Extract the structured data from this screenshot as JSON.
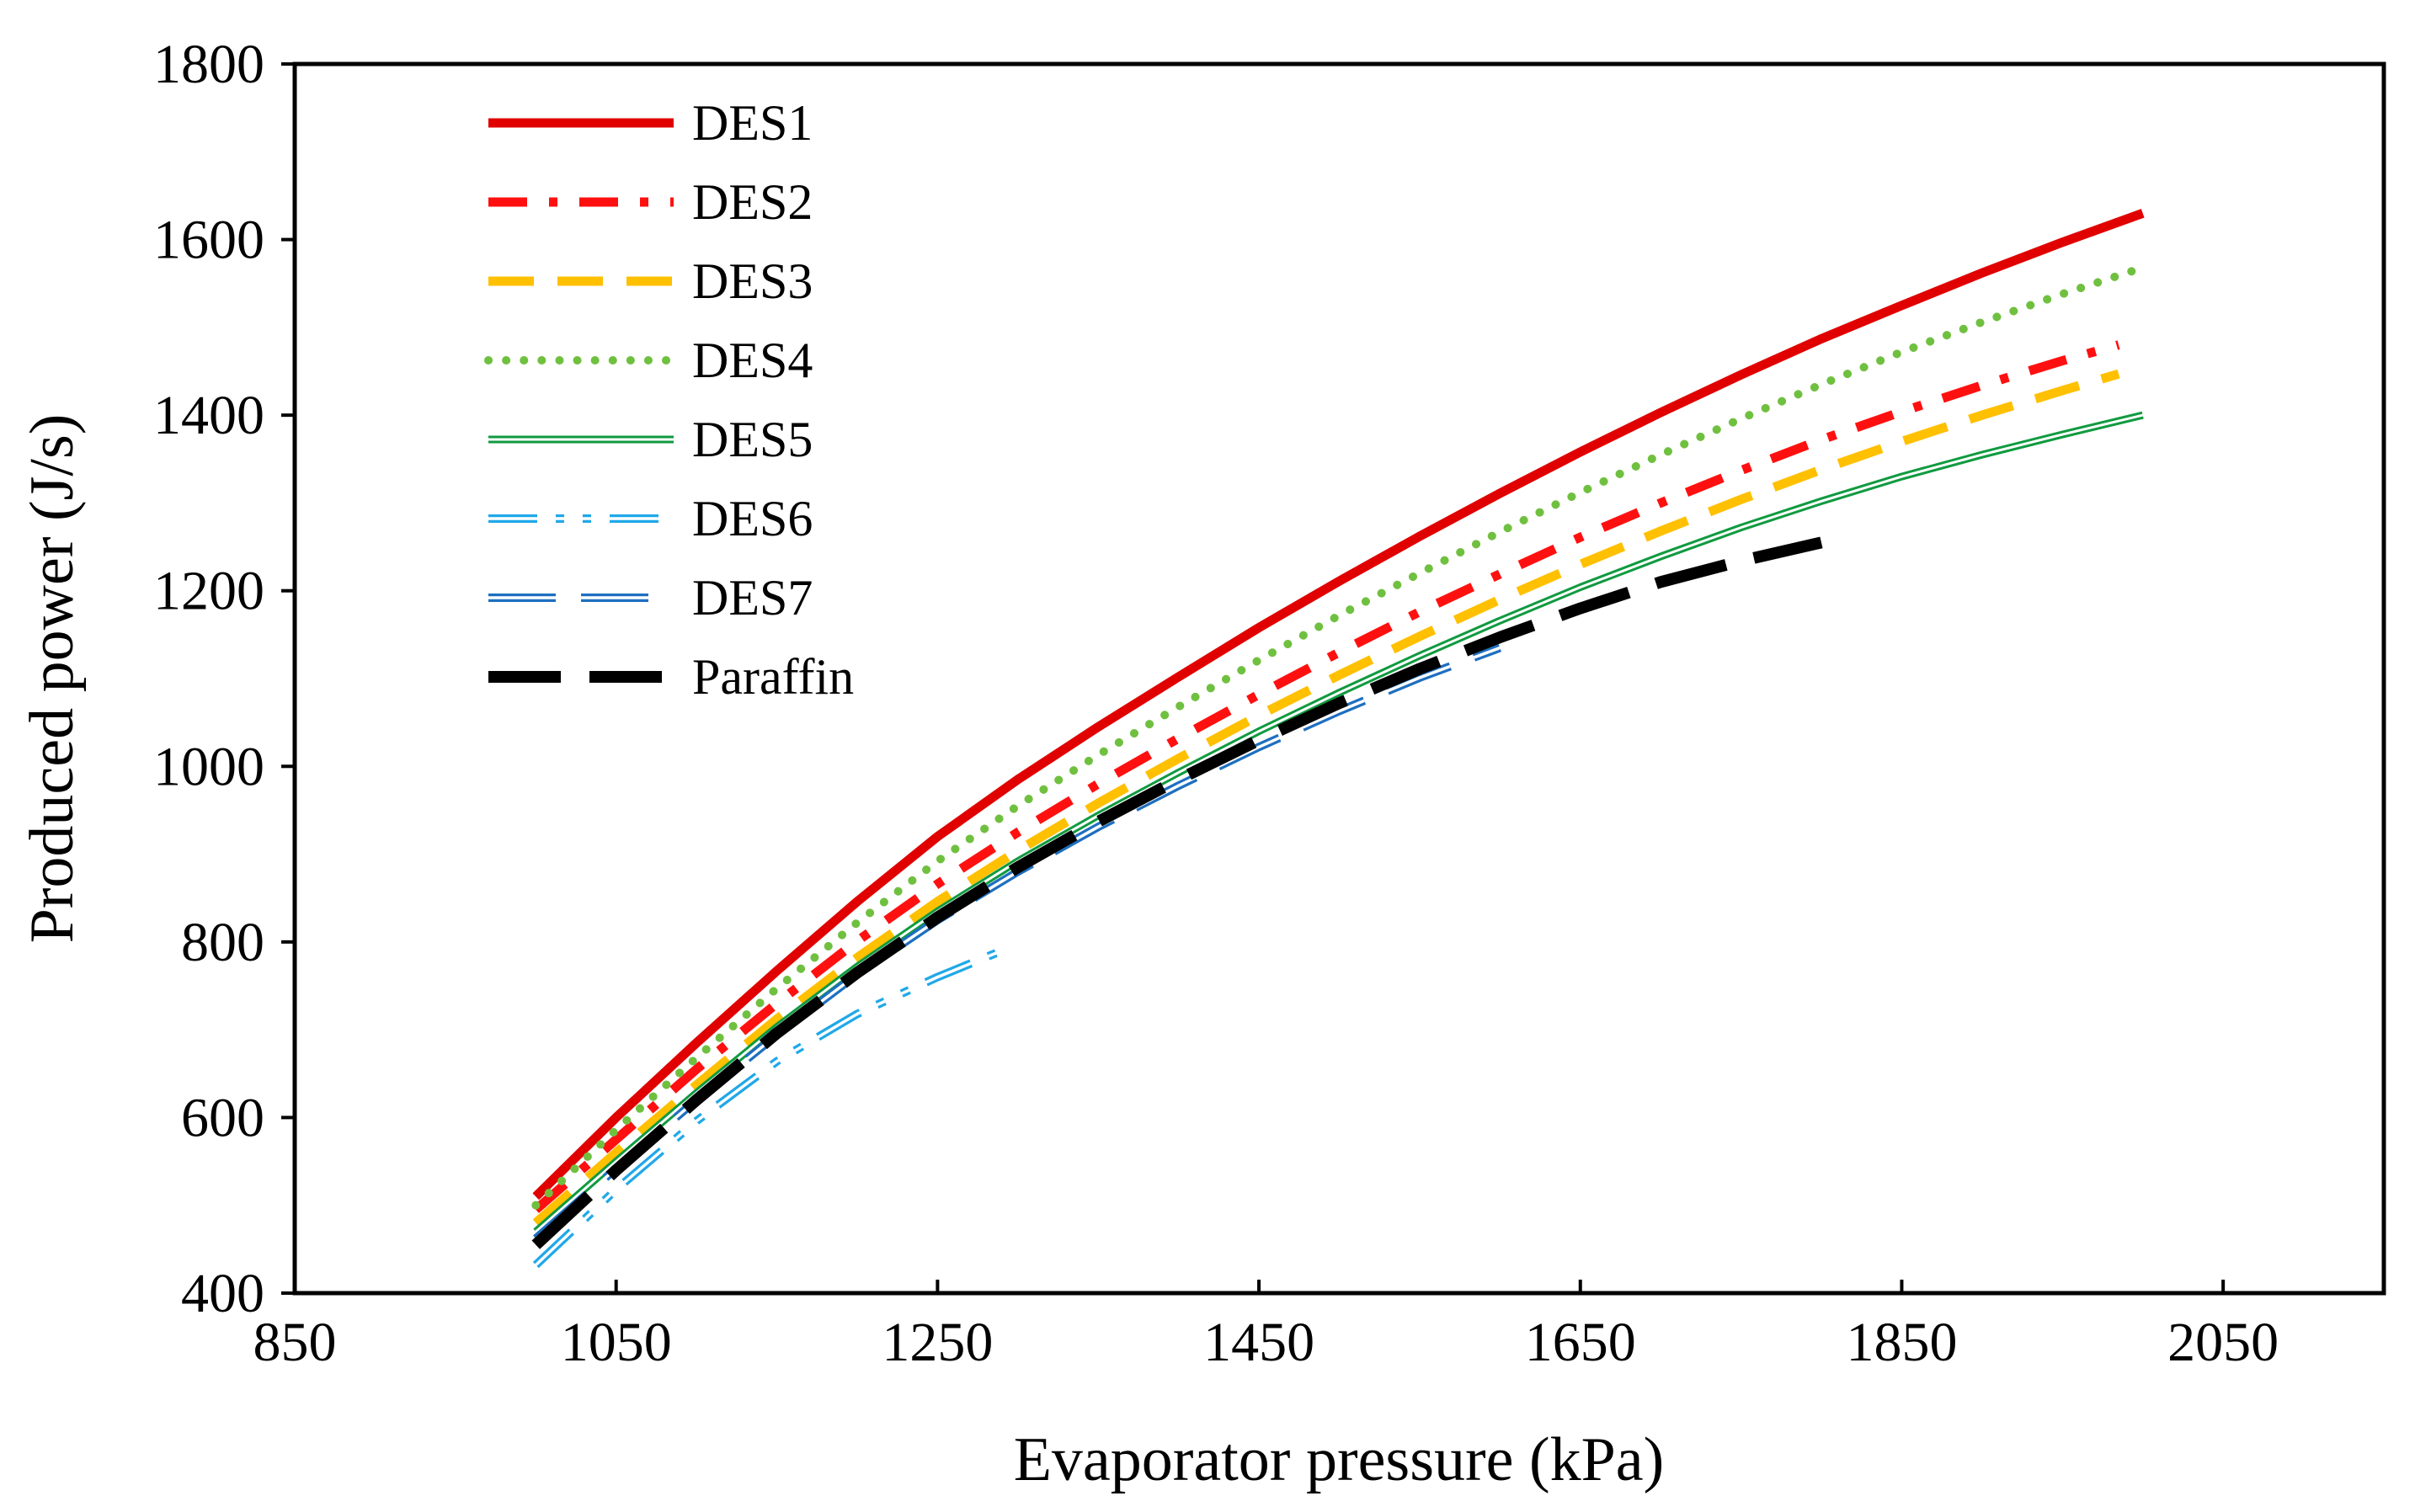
{
  "chart_data": {
    "type": "line",
    "title": "",
    "xlabel": "Evaporator pressure (kPa)",
    "ylabel": "Produced power (J/s)",
    "xlim": [
      850,
      2150
    ],
    "ylim": [
      400,
      1800
    ],
    "xticks": [
      850,
      1050,
      1250,
      1450,
      1650,
      1850,
      2050
    ],
    "yticks": [
      400,
      600,
      800,
      1000,
      1200,
      1400,
      1600,
      1800
    ],
    "xtick_labels": [
      "850",
      "1050",
      "1250",
      "1450",
      "1650",
      "1850",
      "2050"
    ],
    "ytick_labels": [
      "400",
      "600",
      "800",
      "1000",
      "1200",
      "1400",
      "1600",
      "1800"
    ],
    "legend_position": "top-left",
    "series": [
      {
        "name": "DES1",
        "color": "#e00000",
        "style": "solid",
        "x": [
          1000,
          1050,
          1100,
          1150,
          1200,
          1250,
          1300,
          1350,
          1400,
          1450,
          1500,
          1550,
          1600,
          1650,
          1700,
          1750,
          1800,
          1850,
          1900,
          1950,
          2000
        ],
        "y": [
          510,
          600,
          685,
          767,
          846,
          920,
          985,
          1045,
          1102,
          1158,
          1211,
          1262,
          1311,
          1358,
          1403,
          1446,
          1487,
          1525,
          1562,
          1597,
          1630
        ]
      },
      {
        "name": "DES2",
        "color": "#ff1010",
        "style": "dashdot",
        "x": [
          1000,
          1050,
          1100,
          1150,
          1200,
          1250,
          1300,
          1350,
          1400,
          1450,
          1500,
          1550,
          1600,
          1650,
          1700,
          1750,
          1800,
          1850,
          1900,
          1950,
          1985
        ],
        "y": [
          495,
          575,
          655,
          730,
          801,
          866,
          925,
          980,
          1032,
          1082,
          1130,
          1176,
          1219,
          1261,
          1300,
          1337,
          1372,
          1404,
          1434,
          1462,
          1480
        ]
      },
      {
        "name": "DES3",
        "color": "#ffc000",
        "style": "dash",
        "x": [
          1000,
          1050,
          1100,
          1150,
          1200,
          1250,
          1300,
          1350,
          1400,
          1450,
          1500,
          1550,
          1600,
          1650,
          1700,
          1750,
          1800,
          1850,
          1900,
          1950,
          1985
        ],
        "y": [
          480,
          560,
          637,
          712,
          782,
          846,
          904,
          958,
          1009,
          1058,
          1104,
          1148,
          1190,
          1230,
          1268,
          1304,
          1338,
          1370,
          1400,
          1428,
          1447
        ]
      },
      {
        "name": "DES4",
        "color": "#70c040",
        "style": "dot",
        "x": [
          1000,
          1050,
          1100,
          1150,
          1200,
          1250,
          1300,
          1350,
          1400,
          1450,
          1500,
          1550,
          1600,
          1650,
          1700,
          1750,
          1800,
          1850,
          1900,
          1950,
          2000
        ],
        "y": [
          500,
          586,
          668,
          747,
          822,
          892,
          955,
          1013,
          1068,
          1121,
          1172,
          1220,
          1267,
          1312,
          1355,
          1396,
          1435,
          1472,
          1506,
          1538,
          1568
        ]
      },
      {
        "name": "DES5",
        "color": "#109a40",
        "style": "double",
        "x": [
          1000,
          1050,
          1100,
          1150,
          1200,
          1250,
          1300,
          1350,
          1400,
          1450,
          1500,
          1550,
          1600,
          1650,
          1700,
          1750,
          1800,
          1850,
          1900,
          1950,
          2000
        ],
        "y": [
          470,
          550,
          628,
          703,
          772,
          835,
          892,
          944,
          993,
          1040,
          1084,
          1126,
          1166,
          1204,
          1239,
          1272,
          1302,
          1330,
          1355,
          1378,
          1400
        ]
      },
      {
        "name": "DES6",
        "color": "#20a8e8",
        "style": "double-dashdotdot",
        "x": [
          1000,
          1050,
          1100,
          1150,
          1200,
          1250,
          1290
        ],
        "y": [
          432,
          518,
          596,
          664,
          718,
          760,
          790
        ]
      },
      {
        "name": "DES7",
        "color": "#1e6fc0",
        "style": "double-dash",
        "x": [
          1000,
          1050,
          1100,
          1150,
          1200,
          1250,
          1300,
          1350,
          1400,
          1450,
          1500,
          1550,
          1600
        ],
        "y": [
          462,
          542,
          620,
          694,
          763,
          825,
          880,
          931,
          978,
          1022,
          1063,
          1101,
          1135
        ]
      },
      {
        "name": "Paraffin",
        "color": "#000000",
        "style": "longdash",
        "x": [
          1000,
          1050,
          1100,
          1150,
          1200,
          1250,
          1300,
          1350,
          1400,
          1450,
          1500,
          1550,
          1600,
          1650,
          1700,
          1750,
          1800
        ],
        "y": [
          455,
          540,
          620,
          696,
          765,
          828,
          885,
          937,
          985,
          1030,
          1072,
          1111,
          1147,
          1180,
          1210,
          1234,
          1255
        ]
      }
    ]
  }
}
